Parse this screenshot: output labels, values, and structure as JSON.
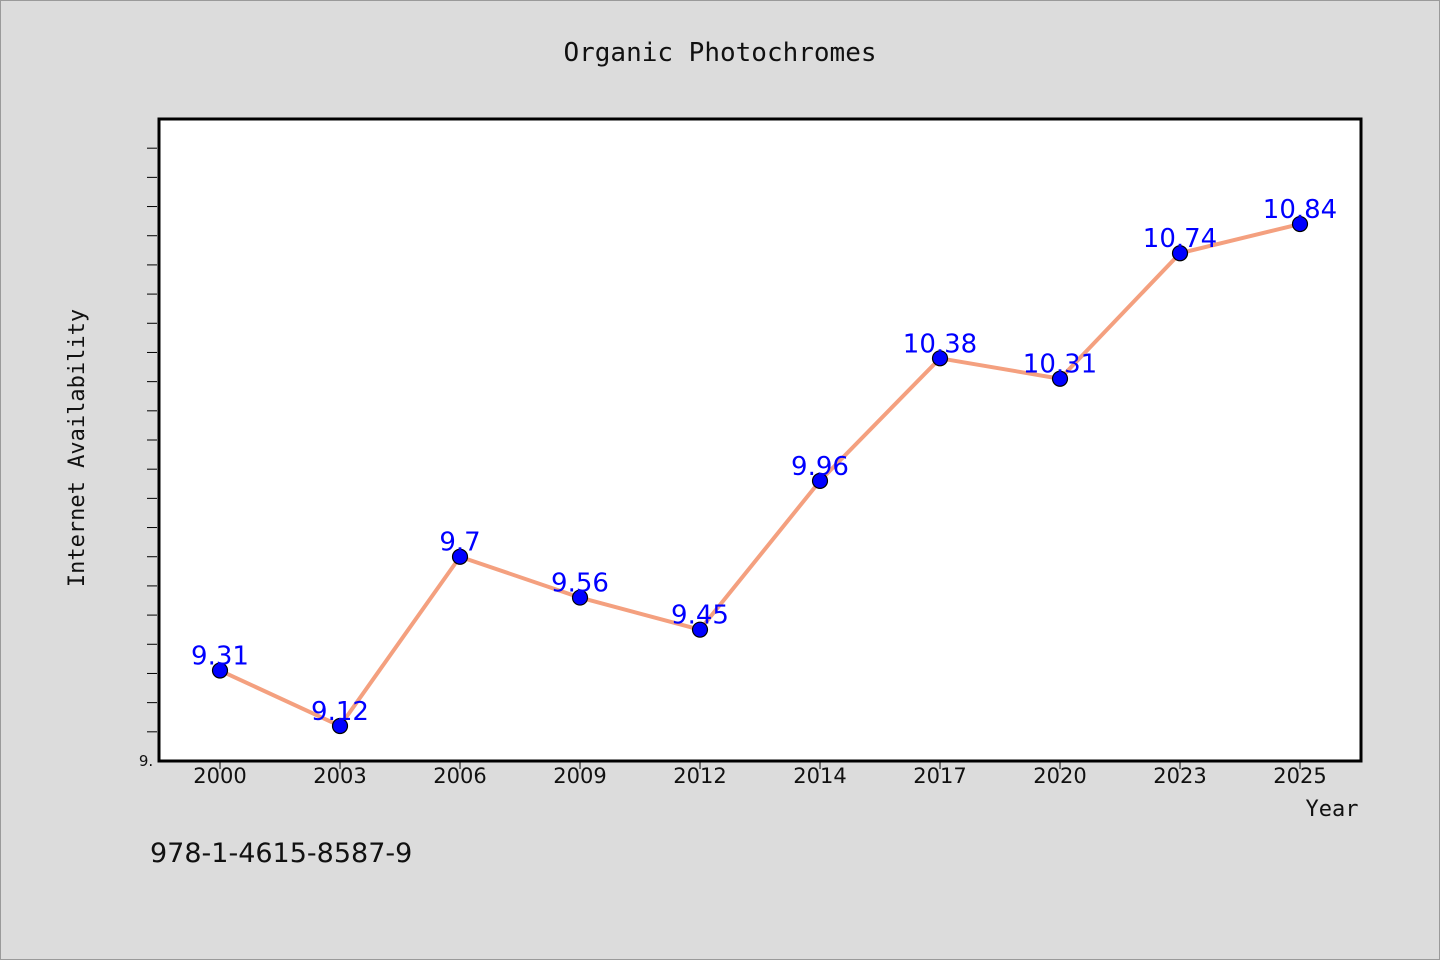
{
  "chart_data": {
    "type": "line",
    "title": "Organic Photochromes",
    "xlabel": "Year",
    "ylabel": "Internet Availability",
    "categories": [
      "2000",
      "2003",
      "2006",
      "2009",
      "2012",
      "2014",
      "2017",
      "2020",
      "2023",
      "2025"
    ],
    "series": [
      {
        "values": [
          9.31,
          9.12,
          9.7,
          9.56,
          9.45,
          9.96,
          10.38,
          10.31,
          10.74,
          10.84
        ]
      }
    ],
    "data_labels": [
      "9.31",
      "9.12",
      "9.7",
      "9.56",
      "9.45",
      "9.96",
      "10.38",
      "10.31",
      "10.74",
      "10.84"
    ],
    "y_tick_label": "9.",
    "ylim": [
      9.0,
      11.2
    ],
    "grid": false,
    "legend": "none",
    "line_color": "#f4a07f",
    "marker_color": "#0000ff"
  },
  "footer": {
    "isbn": "978-1-4615-8587-9"
  }
}
